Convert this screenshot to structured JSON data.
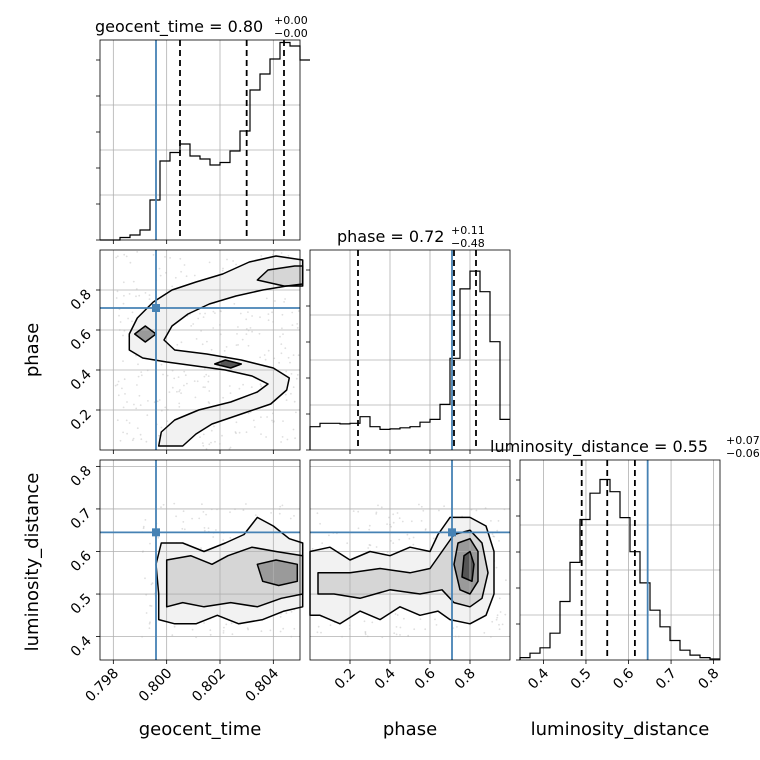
{
  "chart_data": {
    "type": "corner",
    "parameters": [
      "geocent_time",
      "phase",
      "luminosity_distance"
    ],
    "axis_labels": [
      "geocent_time",
      "phase",
      "luminosity_distance"
    ],
    "ranges": [
      [
        0.7975,
        0.805
      ],
      [
        0.0,
        1.0
      ],
      [
        0.345,
        0.815
      ]
    ],
    "ticks": [
      {
        "values": [
          0.798,
          0.8,
          0.802,
          0.804
        ],
        "labels": [
          "0.798",
          "0.800",
          "0.802",
          "0.804"
        ]
      },
      {
        "values": [
          0.2,
          0.4,
          0.6,
          0.8
        ],
        "labels": [
          "0.2",
          "0.4",
          "0.6",
          "0.8"
        ]
      },
      {
        "values": [
          0.4,
          0.5,
          0.6,
          0.7,
          0.8
        ],
        "labels": [
          "0.4",
          "0.5",
          "0.6",
          "0.7",
          "0.8"
        ]
      }
    ],
    "truths": [
      0.7996,
      0.71,
      0.645
    ],
    "titles": [
      {
        "name": "geocent_time",
        "median": "0.80",
        "plus": "+0.00",
        "minus": "−0.00"
      },
      {
        "name": "phase",
        "median": "0.72",
        "plus": "+0.11",
        "minus": "−0.48"
      },
      {
        "name": "luminosity_distance",
        "median": "0.55",
        "plus": "+0.07",
        "minus": "−0.06"
      }
    ],
    "quantiles": [
      [
        0.8005,
        0.803,
        0.8044
      ],
      [
        0.24,
        0.72,
        0.83
      ],
      [
        0.49,
        0.55,
        0.615
      ]
    ],
    "histograms": [
      {
        "edges_start": 0.7975,
        "bin_width": 0.000375,
        "counts": [
          0.0,
          0.0,
          0.05,
          0.1,
          0.2,
          0.8,
          1.58,
          1.75,
          1.92,
          1.68,
          1.62,
          1.5,
          1.55,
          1.78,
          2.18,
          3.0,
          3.32,
          3.62,
          3.95,
          3.88,
          3.6
        ]
      },
      {
        "edges_start": 0.0,
        "bin_width": 0.05,
        "counts": [
          0.42,
          0.48,
          0.48,
          0.47,
          0.48,
          0.6,
          0.42,
          0.37,
          0.38,
          0.4,
          0.42,
          0.5,
          0.55,
          0.82,
          1.65,
          2.9,
          3.22,
          2.85,
          1.95,
          0.55
        ]
      },
      {
        "edges_start": 0.345,
        "bin_width": 0.0235,
        "counts": [
          0.05,
          0.14,
          0.25,
          0.55,
          1.2,
          2.0,
          2.88,
          3.42,
          3.7,
          3.45,
          2.92,
          2.22,
          1.58,
          1.02,
          0.68,
          0.4,
          0.2,
          0.1,
          0.05,
          0.02
        ]
      }
    ],
    "histogram_ymax": [
      4.0,
      3.6,
      4.1
    ],
    "contours": {
      "phase_vs_geocent_time": [
        [
          [
            0.8041,
            0.97
          ],
          [
            0.8031,
            0.94
          ],
          [
            0.8021,
            0.88
          ],
          [
            0.8011,
            0.84
          ],
          [
            0.8002,
            0.8
          ],
          [
            0.7995,
            0.74
          ],
          [
            0.7989,
            0.66
          ],
          [
            0.7986,
            0.58
          ],
          [
            0.7986,
            0.5
          ],
          [
            0.7991,
            0.46
          ],
          [
            0.8,
            0.44
          ],
          [
            0.8011,
            0.42
          ],
          [
            0.8022,
            0.4
          ],
          [
            0.8032,
            0.37
          ],
          [
            0.8038,
            0.33
          ],
          [
            0.8034,
            0.29
          ],
          [
            0.8024,
            0.24
          ],
          [
            0.8012,
            0.2
          ],
          [
            0.8003,
            0.15
          ],
          [
            0.7998,
            0.09
          ],
          [
            0.7997,
            0.02
          ],
          [
            0.8006,
            0.02
          ],
          [
            0.8011,
            0.08
          ],
          [
            0.8017,
            0.13
          ],
          [
            0.8028,
            0.18
          ],
          [
            0.8039,
            0.23
          ],
          [
            0.8045,
            0.3
          ],
          [
            0.8046,
            0.36
          ],
          [
            0.804,
            0.41
          ],
          [
            0.8028,
            0.45
          ],
          [
            0.8015,
            0.48
          ],
          [
            0.8003,
            0.5
          ],
          [
            0.7999,
            0.55
          ],
          [
            0.8002,
            0.62
          ],
          [
            0.8008,
            0.68
          ],
          [
            0.8016,
            0.73
          ],
          [
            0.8026,
            0.77
          ],
          [
            0.8036,
            0.8
          ],
          [
            0.8045,
            0.82
          ],
          [
            0.8051,
            0.83
          ],
          [
            0.8051,
            0.95
          ]
        ],
        [
          [
            0.8048,
            0.92
          ],
          [
            0.8038,
            0.9
          ],
          [
            0.8034,
            0.85
          ],
          [
            0.8044,
            0.82
          ],
          [
            0.8051,
            0.82
          ],
          [
            0.8051,
            0.92
          ]
        ],
        [
          [
            0.7988,
            0.58
          ],
          [
            0.7992,
            0.54
          ],
          [
            0.7996,
            0.58
          ],
          [
            0.7992,
            0.62
          ]
        ],
        [
          [
            0.8018,
            0.43
          ],
          [
            0.8024,
            0.41
          ],
          [
            0.8028,
            0.43
          ],
          [
            0.8022,
            0.45
          ]
        ]
      ],
      "luminosity_distance_vs_geocent_time": [
        [
          [
            0.7997,
            0.44
          ],
          [
            0.7997,
            0.5
          ],
          [
            0.7996,
            0.57
          ],
          [
            0.7998,
            0.62
          ],
          [
            0.8006,
            0.62
          ],
          [
            0.8014,
            0.6
          ],
          [
            0.8022,
            0.62
          ],
          [
            0.8029,
            0.64
          ],
          [
            0.8034,
            0.68
          ],
          [
            0.804,
            0.66
          ],
          [
            0.8046,
            0.63
          ],
          [
            0.8051,
            0.62
          ],
          [
            0.8051,
            0.47
          ],
          [
            0.8044,
            0.46
          ],
          [
            0.8036,
            0.44
          ],
          [
            0.8027,
            0.43
          ],
          [
            0.8019,
            0.45
          ],
          [
            0.8011,
            0.43
          ],
          [
            0.8003,
            0.43
          ]
        ],
        [
          [
            0.8,
            0.47
          ],
          [
            0.8,
            0.58
          ],
          [
            0.8009,
            0.59
          ],
          [
            0.8017,
            0.57
          ],
          [
            0.8023,
            0.59
          ],
          [
            0.8032,
            0.61
          ],
          [
            0.8041,
            0.6
          ],
          [
            0.8051,
            0.59
          ],
          [
            0.8051,
            0.5
          ],
          [
            0.8043,
            0.49
          ],
          [
            0.8034,
            0.47
          ],
          [
            0.8024,
            0.48
          ],
          [
            0.8014,
            0.47
          ],
          [
            0.8006,
            0.48
          ]
        ],
        [
          [
            0.8036,
            0.53
          ],
          [
            0.8034,
            0.57
          ],
          [
            0.8041,
            0.58
          ],
          [
            0.8049,
            0.57
          ],
          [
            0.8049,
            0.53
          ],
          [
            0.8042,
            0.52
          ]
        ]
      ],
      "luminosity_distance_vs_phase": [
        [
          [
            0.0,
            0.45
          ],
          [
            0.0,
            0.6
          ],
          [
            0.1,
            0.61
          ],
          [
            0.2,
            0.58
          ],
          [
            0.3,
            0.6
          ],
          [
            0.4,
            0.59
          ],
          [
            0.5,
            0.61
          ],
          [
            0.6,
            0.6
          ],
          [
            0.64,
            0.64
          ],
          [
            0.7,
            0.68
          ],
          [
            0.8,
            0.68
          ],
          [
            0.88,
            0.66
          ],
          [
            0.92,
            0.6
          ],
          [
            0.92,
            0.5
          ],
          [
            0.88,
            0.45
          ],
          [
            0.8,
            0.43
          ],
          [
            0.7,
            0.44
          ],
          [
            0.64,
            0.46
          ],
          [
            0.55,
            0.45
          ],
          [
            0.45,
            0.47
          ],
          [
            0.35,
            0.44
          ],
          [
            0.25,
            0.46
          ],
          [
            0.15,
            0.43
          ],
          [
            0.05,
            0.45
          ]
        ],
        [
          [
            0.04,
            0.5
          ],
          [
            0.04,
            0.55
          ],
          [
            0.2,
            0.55
          ],
          [
            0.35,
            0.56
          ],
          [
            0.5,
            0.55
          ],
          [
            0.6,
            0.56
          ],
          [
            0.66,
            0.6
          ],
          [
            0.72,
            0.64
          ],
          [
            0.8,
            0.65
          ],
          [
            0.86,
            0.62
          ],
          [
            0.89,
            0.55
          ],
          [
            0.86,
            0.49
          ],
          [
            0.8,
            0.47
          ],
          [
            0.72,
            0.48
          ],
          [
            0.66,
            0.51
          ],
          [
            0.55,
            0.5
          ],
          [
            0.4,
            0.51
          ],
          [
            0.25,
            0.49
          ],
          [
            0.12,
            0.5
          ]
        ],
        [
          [
            0.72,
            0.57
          ],
          [
            0.74,
            0.62
          ],
          [
            0.8,
            0.63
          ],
          [
            0.84,
            0.6
          ],
          [
            0.84,
            0.53
          ],
          [
            0.8,
            0.5
          ],
          [
            0.75,
            0.51
          ]
        ],
        [
          [
            0.76,
            0.54
          ],
          [
            0.77,
            0.59
          ],
          [
            0.8,
            0.6
          ],
          [
            0.82,
            0.57
          ],
          [
            0.81,
            0.53
          ]
        ]
      ]
    },
    "colors": {
      "truth": "#4682b4",
      "contour": "#000000",
      "grid": "#b0b0b0",
      "samples": "#808080"
    }
  }
}
